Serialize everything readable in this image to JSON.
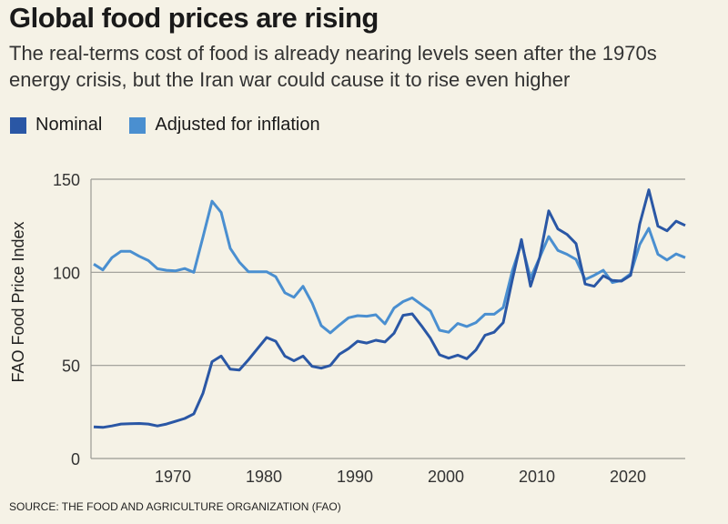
{
  "chart_data": {
    "type": "line",
    "title": "Global food prices are rising",
    "subtitle": "The real-terms cost of food is already nearing levels seen after the 1970s energy crisis, but the Iran war could cause it to rise even higher",
    "xlabel": "",
    "ylabel": "FAO Food Price Index",
    "xlim": [
      1961,
      2026
    ],
    "ylim": [
      0,
      150
    ],
    "x_ticks": [
      1970,
      1980,
      1990,
      2000,
      2010,
      2020
    ],
    "y_ticks": [
      0,
      50,
      100,
      150
    ],
    "grid": "horizontal",
    "legend": "top-left",
    "x": [
      1961,
      1962,
      1963,
      1964,
      1965,
      1966,
      1967,
      1968,
      1969,
      1970,
      1971,
      1972,
      1973,
      1974,
      1975,
      1976,
      1977,
      1978,
      1979,
      1980,
      1981,
      1982,
      1983,
      1984,
      1985,
      1986,
      1987,
      1988,
      1989,
      1990,
      1991,
      1992,
      1993,
      1994,
      1995,
      1996,
      1997,
      1998,
      1999,
      2000,
      2001,
      2002,
      2003,
      2004,
      2005,
      2006,
      2007,
      2008,
      2009,
      2010,
      2011,
      2012,
      2013,
      2014,
      2015,
      2016,
      2017,
      2018,
      2019,
      2020,
      2021,
      2022,
      2023,
      2024,
      2025,
      2026
    ],
    "series": [
      {
        "name": "Nominal",
        "color": "#2a57a5",
        "values": [
          17,
          16.7,
          17.5,
          18.5,
          18.7,
          18.8,
          18.5,
          17.5,
          18.5,
          20,
          21.5,
          24,
          35,
          52,
          55,
          48,
          47.5,
          53,
          59,
          65,
          63,
          55,
          52.5,
          55,
          49.5,
          48.5,
          50,
          56,
          59,
          63,
          62,
          63.5,
          62.6,
          67.3,
          76.9,
          77.7,
          71.4,
          64.6,
          55.7,
          53.9,
          55.5,
          53.6,
          58.3,
          66.2,
          67.8,
          73,
          96,
          117.6,
          92.5,
          107.9,
          133,
          123.3,
          120.4,
          115.4,
          93.7,
          92.5,
          98.1,
          95.6,
          95.3,
          98.4,
          125.9,
          144.3,
          124.8,
          122.3,
          127.5,
          125.2
        ]
      },
      {
        "name": "Adjusted for inflation",
        "color": "#4a8fd0",
        "values": [
          104.4,
          101.3,
          107.9,
          111.3,
          111.3,
          108.6,
          106.3,
          101.9,
          101.1,
          100.8,
          102,
          100,
          118.9,
          138.2,
          132.2,
          112.9,
          105.5,
          100.3,
          100.3,
          100.3,
          97.6,
          89,
          86.6,
          92.5,
          83.5,
          71.4,
          67.5,
          71.7,
          75.6,
          76.7,
          76.4,
          77.2,
          72.3,
          80.8,
          84.3,
          86.3,
          82.7,
          79.2,
          68.9,
          67.8,
          72.5,
          70.9,
          73,
          77.5,
          77.5,
          81.1,
          100.8,
          115.7,
          96.9,
          107.9,
          119.2,
          111.8,
          109.7,
          106.9,
          96.1,
          98.4,
          101.1,
          94.5,
          95.6,
          99.2,
          114.9,
          123.6,
          109.7,
          106.6,
          109.9,
          107.9
        ]
      }
    ],
    "source": "SOURCE: THE FOOD AND AGRICULTURE ORGANIZATION (FAO)"
  },
  "colors": {
    "background": "#f5f2e6",
    "grid": "#9a9a94"
  }
}
